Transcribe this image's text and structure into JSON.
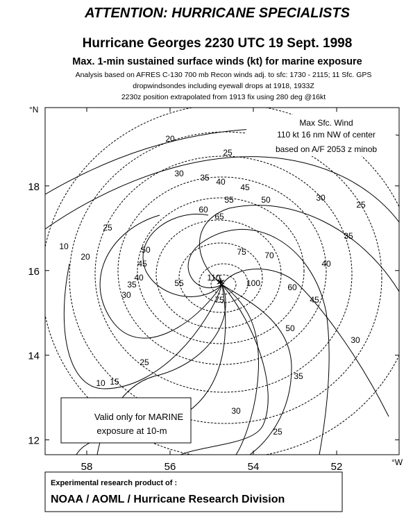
{
  "header": {
    "banner": "ATTENTION: HURRICANE SPECIALISTS",
    "title": "Hurricane Georges 2230 UTC 19 Sept. 1998",
    "subtitle": "Max. 1-min sustained surface winds (kt) for marine exposure",
    "notes": [
      "Analysis based on AFRES C-130 700 mb Recon winds adj. to sfc: 1730 - 2115; 11 Sfc. GPS",
      "dropwindsondes including eyewall drops at  1918, 1933Z",
      "2230z position extrapolated from 1913 fix using 280 deg @16kt"
    ]
  },
  "map": {
    "lonlim": [
      59,
      50.5
    ],
    "latlim": [
      11.65,
      19.85
    ],
    "lon_ticks": [
      58,
      56,
      54,
      52
    ],
    "lat_ticks": [
      12,
      14,
      16,
      18
    ],
    "lat_unit": "°N",
    "lon_unit": "°W",
    "contour_labels": [
      20,
      25,
      30,
      35,
      40,
      45,
      55,
      50,
      30,
      25,
      60,
      65,
      25,
      10,
      20,
      50,
      45,
      40,
      35,
      75,
      70,
      40,
      35,
      30,
      55,
      60,
      45,
      25,
      15,
      10,
      50,
      35,
      30,
      25,
      30,
      110,
      75,
      100
    ]
  },
  "max_wind_box": [
    "Max Sfc. Wind",
    "110 kt  16 nm NW of center",
    "based on A/F 2053 z minob"
  ],
  "marine_box": [
    "Valid only for MARINE",
    "exposure at 10-m"
  ],
  "footer": {
    "line1": "Experimental research product of :",
    "line2": "NOAA / AOML / Hurricane Research Division"
  }
}
